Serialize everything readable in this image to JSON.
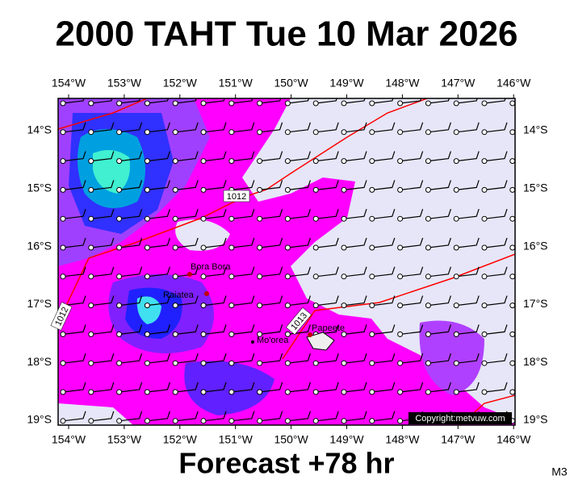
{
  "header": {
    "title": "2000 TAHT Tue 10 Mar 2026"
  },
  "map": {
    "lon_labels": [
      "154°W",
      "153°W",
      "152°W",
      "151°W",
      "150°W",
      "149°W",
      "148°W",
      "147°W",
      "146°W"
    ],
    "lat_labels": [
      "14°S",
      "15°S",
      "16°S",
      "17°S",
      "18°S",
      "19°S"
    ],
    "places": [
      "Bora Bora",
      "Raiatea",
      "Mo'orea",
      "Papeete"
    ],
    "isobar_labels": [
      "1012",
      "1012",
      "1013"
    ],
    "copyright": "Copyright:metvuw.com"
  },
  "footer": {
    "caption": "Forecast +78 hr",
    "code": "M3"
  }
}
